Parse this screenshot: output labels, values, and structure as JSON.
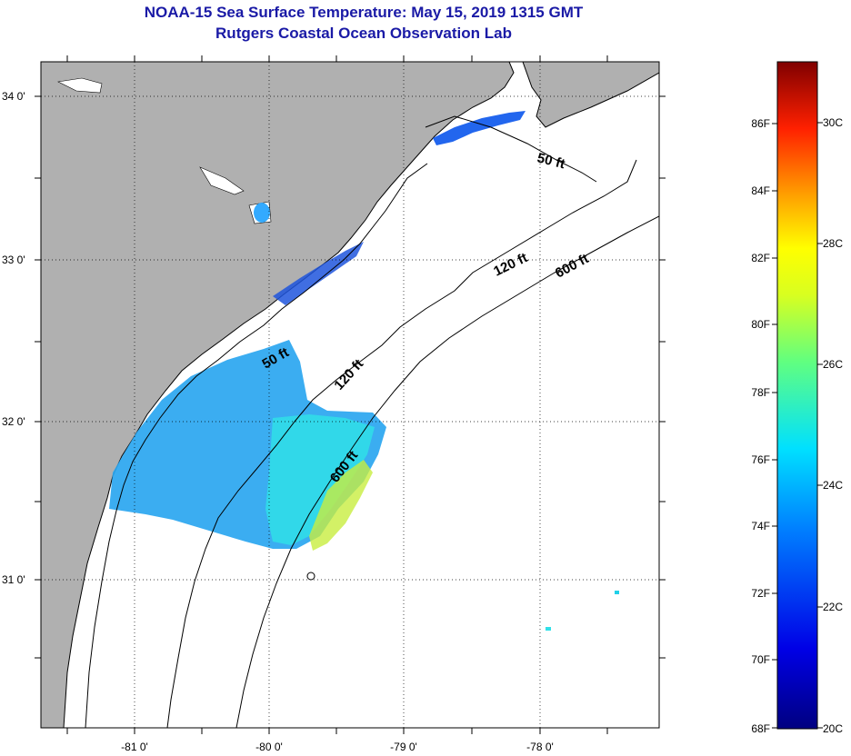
{
  "header": {
    "title": "NOAA-15 Sea Surface Temperature:  May 15, 2019 1315 GMT",
    "subtitle": "Rutgers Coastal Ocean Observation Lab"
  },
  "map": {
    "lat_labels": [
      "34 0'",
      "33 0'",
      "32 0'",
      "31 0'"
    ],
    "lon_labels": [
      "-81 0'",
      "-80 0'",
      "-79 0'",
      "-78 0'"
    ],
    "contour_labels": {
      "north_50": "50 ft",
      "east_120": "120 ft",
      "east_600": "600 ft",
      "south_50": "50 ft",
      "south_120": "120 ft",
      "south_600": "600 ft"
    },
    "colors": {
      "land": "#b0b0b0",
      "coastline": "#000000"
    }
  },
  "colorbar": {
    "fahrenheit_labels": [
      "86F",
      "84F",
      "82F",
      "80F",
      "78F",
      "76F",
      "74F",
      "72F",
      "70F",
      "68F"
    ],
    "celsius_labels": [
      "30C",
      "28C",
      "26C",
      "24C",
      "22C",
      "20C"
    ],
    "range_f": [
      68,
      88
    ],
    "range_c": [
      20,
      31
    ]
  }
}
